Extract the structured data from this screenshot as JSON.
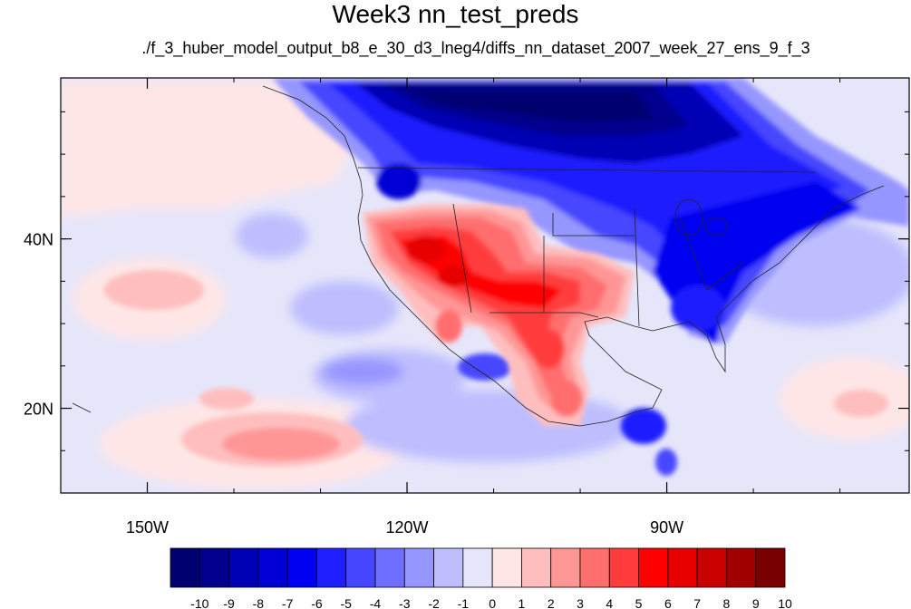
{
  "title": "Week3 nn_test_preds",
  "subtitle": "./f_3_huber_model_output_b8_e_30_d3_lneg4/diffs_nn_dataset_2007_week_27_ens_9_f_3",
  "map": {
    "lon_range": [
      -160,
      -62
    ],
    "lat_range": [
      10,
      59
    ],
    "lon_ticks": [
      {
        "value": -150,
        "label": "150W"
      },
      {
        "value": -120,
        "label": "120W"
      },
      {
        "value": -90,
        "label": "90W"
      }
    ],
    "lat_ticks": [
      {
        "value": 40,
        "label": "40N"
      },
      {
        "value": 20,
        "label": "20N"
      }
    ]
  },
  "colorbar": {
    "labels": [
      "-10",
      "-9",
      "-8",
      "-7",
      "-6",
      "-5",
      "-4",
      "-3",
      "-2",
      "-1",
      "0",
      "1",
      "2",
      "3",
      "4",
      "5",
      "6",
      "7",
      "8",
      "9",
      "10"
    ],
    "colors": [
      "#00006e",
      "#00008c",
      "#0000b4",
      "#0000d4",
      "#0000f0",
      "#1e1eff",
      "#4646ff",
      "#6e6eff",
      "#9696ff",
      "#bebeff",
      "#e6e6fa",
      "#ffe6e6",
      "#ffbebe",
      "#ff9696",
      "#ff6e6e",
      "#ff3c3c",
      "#ff0000",
      "#e60000",
      "#c80000",
      "#a00000",
      "#780000"
    ]
  }
}
